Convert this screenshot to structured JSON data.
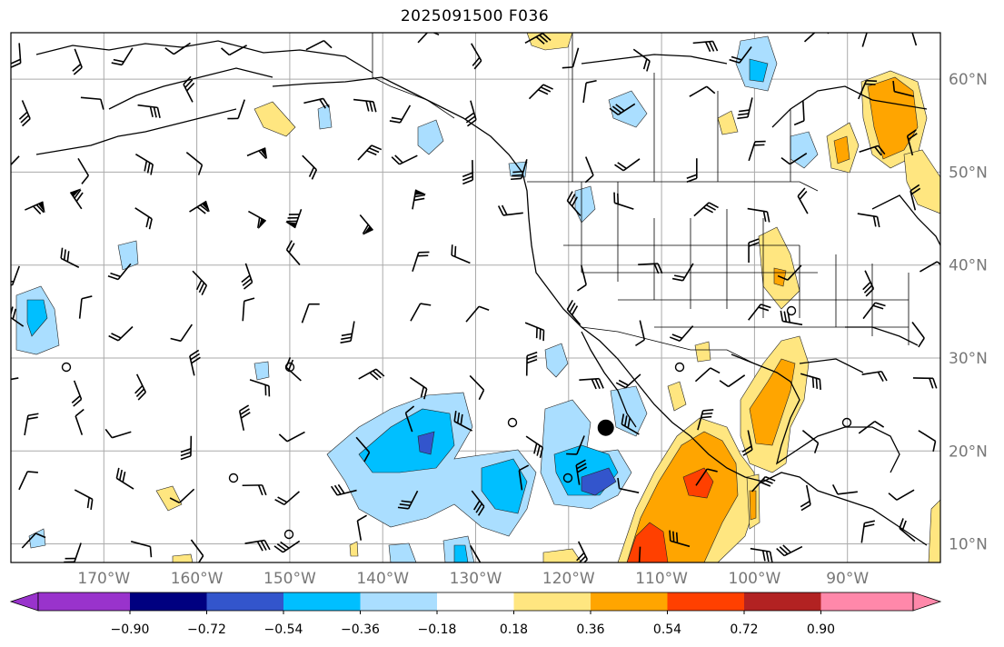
{
  "title": "2025091500 F036",
  "map": {
    "lon_labels": [
      "170°W",
      "160°W",
      "150°W",
      "140°W",
      "130°W",
      "120°W",
      "110°W",
      "100°W",
      "90°W"
    ],
    "lat_labels": [
      "60°N",
      "50°N",
      "40°N",
      "30°N",
      "20°N",
      "10°N"
    ],
    "lon_values": [
      -170,
      -160,
      -150,
      -140,
      -130,
      -120,
      -110,
      -100,
      -90
    ],
    "lat_values": [
      60,
      50,
      40,
      30,
      20,
      10
    ],
    "extent": {
      "lon_min": -180,
      "lon_max": -80,
      "lat_min": 8,
      "lat_max": 65
    },
    "gridlines": true,
    "marker": {
      "lon": -116,
      "lat": 22.5,
      "label": ""
    }
  },
  "colorbar": {
    "tick_labels": [
      "−0.90",
      "−0.72",
      "−0.54",
      "−0.36",
      "−0.18",
      "0.18",
      "0.36",
      "0.54",
      "0.72",
      "0.90"
    ],
    "levels": [
      -0.9,
      -0.72,
      -0.54,
      -0.36,
      -0.18,
      0.18,
      0.36,
      0.54,
      0.72,
      0.9
    ],
    "colors": [
      "#9933cc",
      "#000080",
      "#3355cc",
      "#00bfff",
      "#aadeff",
      "#ffffff",
      "#ffe680",
      "#ffa500",
      "#ff4000",
      "#b22222",
      "#ff88aa"
    ],
    "extend": "both"
  }
}
